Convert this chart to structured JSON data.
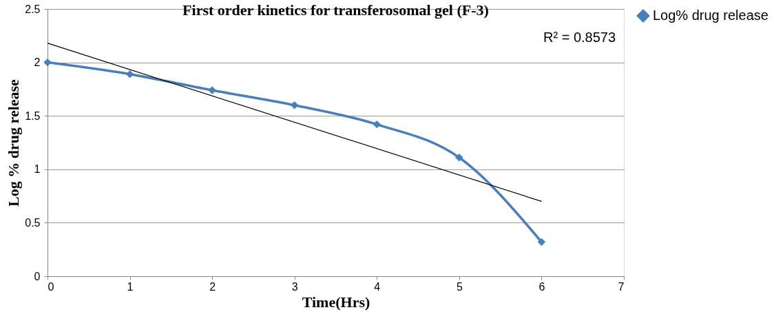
{
  "chart_data": {
    "type": "line",
    "title": "First order kinetics for transferosomal gel (F-3)",
    "xlabel": "Time(Hrs)",
    "ylabel": "Log % drug release",
    "x": [
      0,
      1,
      2,
      3,
      4,
      5,
      6
    ],
    "series": [
      {
        "name": "Log% drug release",
        "color": "#4a7ebb",
        "values": [
          2.0,
          1.89,
          1.74,
          1.6,
          1.42,
          1.11,
          0.32
        ],
        "marker": "diamond"
      },
      {
        "type": "line",
        "color": "#000000",
        "x": [
          0,
          6
        ],
        "values": [
          2.18,
          0.7
        ],
        "marker": "none"
      }
    ],
    "annotations": [
      "R² = 0.8573"
    ],
    "xlim": [
      0,
      7
    ],
    "xticks": [
      0,
      1,
      2,
      3,
      4,
      5,
      6,
      7
    ],
    "ylim": [
      0,
      2.5
    ],
    "yticks": [
      0,
      0.5,
      1,
      1.5,
      2,
      2.5
    ],
    "grid": "y",
    "legend": "right"
  }
}
